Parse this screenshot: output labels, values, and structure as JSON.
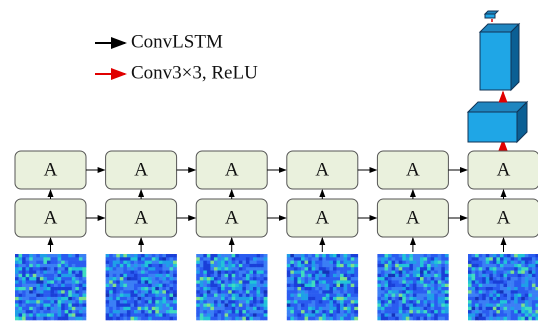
{
  "legend": [
    {
      "label": "ConvLSTM"
    },
    {
      "label": "Conv3×3, ReLU"
    }
  ],
  "cells": {
    "rows": [
      [
        "A",
        "A",
        "A",
        "A",
        "A",
        "A"
      ],
      [
        "A",
        "A",
        "A",
        "A",
        "A",
        "A"
      ]
    ]
  }
}
